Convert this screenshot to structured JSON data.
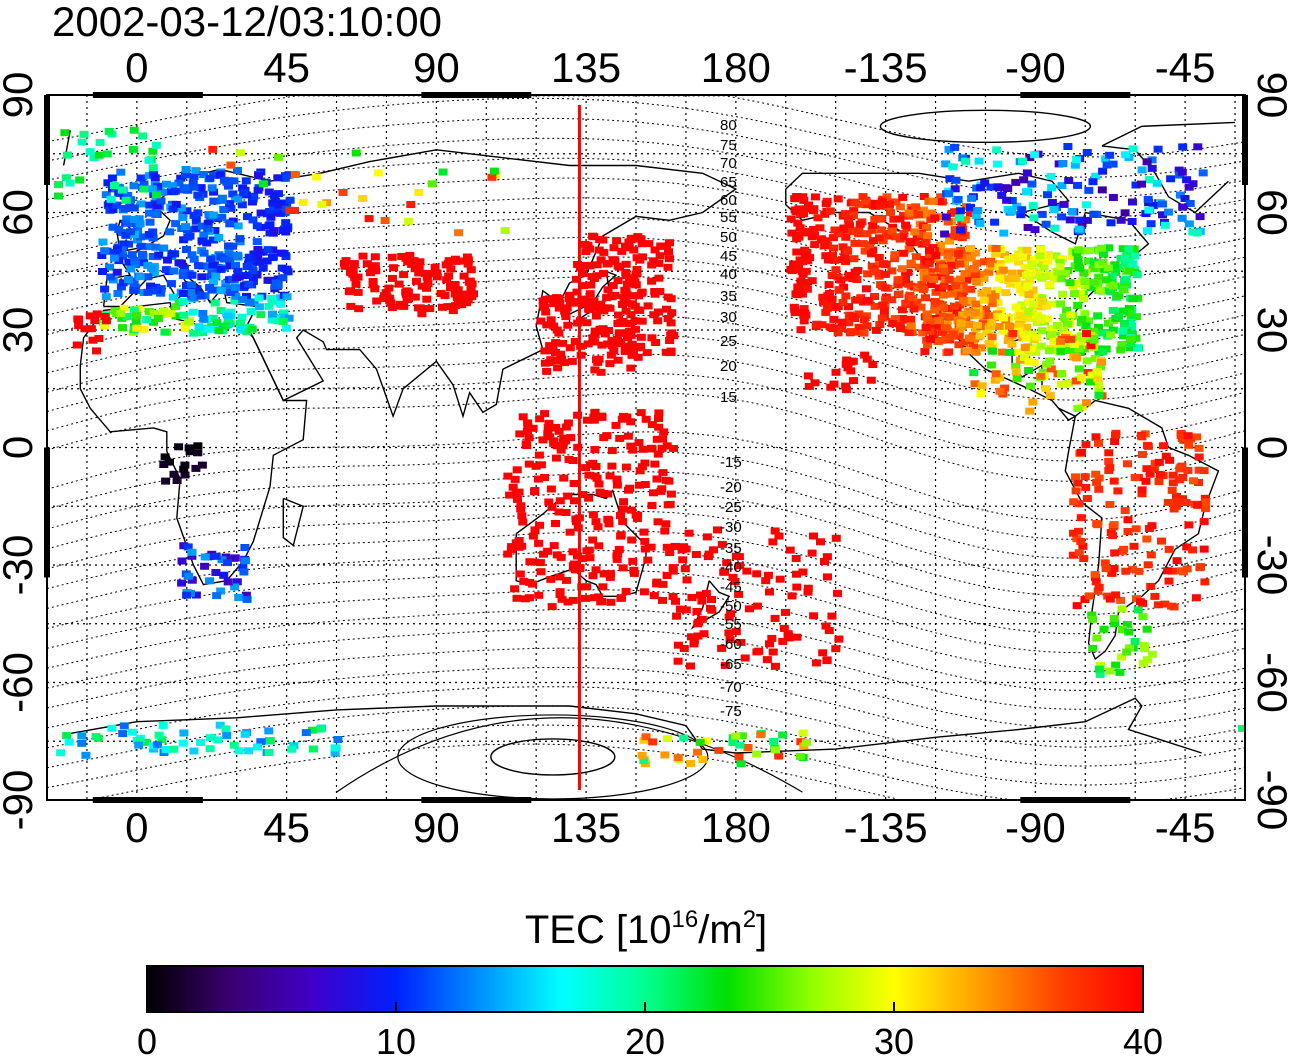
{
  "timestamp": "2002-03-12/03:10:00",
  "map": {
    "projection": "cylindrical",
    "lon_range": [
      -27,
      333
    ],
    "lat_range": [
      -90,
      90
    ],
    "lon_ticks": [
      {
        "lon": 0,
        "label": "0"
      },
      {
        "lon": 45,
        "label": "45"
      },
      {
        "lon": 90,
        "label": "90"
      },
      {
        "lon": 135,
        "label": "135"
      },
      {
        "lon": 180,
        "label": "180"
      },
      {
        "lon": 225,
        "label": "-135"
      },
      {
        "lon": 270,
        "label": "-90"
      },
      {
        "lon": 315,
        "label": "-45"
      }
    ],
    "lat_ticks": [
      {
        "lat": 90,
        "label": "90"
      },
      {
        "lat": 60,
        "label": "60"
      },
      {
        "lat": 30,
        "label": "30"
      },
      {
        "lat": 0,
        "label": "0"
      },
      {
        "lat": -30,
        "label": "-30"
      },
      {
        "lat": -60,
        "label": "-60"
      },
      {
        "lat": -90,
        "label": "-90"
      }
    ],
    "gridlines": true,
    "marker_lon": 133,
    "marker_color": "#ff0000",
    "contour_labels": [
      "80",
      "75",
      "70",
      "65",
      "60",
      "55",
      "50",
      "45",
      "40",
      "35",
      "30",
      "25",
      "20",
      "15",
      "-15",
      "-20",
      "-25",
      "-30",
      "-35",
      "-40",
      "-45",
      "-50",
      "-55",
      "-60",
      "-65",
      "-70",
      "-75"
    ]
  },
  "colorbar": {
    "title": "TEC  [10",
    "title_sup1": "16",
    "title_mid": "/m",
    "title_sup2": "2",
    "title_end": "]",
    "min": 0,
    "max": 40,
    "ticks": [
      "0",
      "10",
      "20",
      "30",
      "40"
    ],
    "colors": [
      "#000000",
      "#3a0070",
      "#4000c8",
      "#0020ff",
      "#0090ff",
      "#00ffff",
      "#00ff90",
      "#00e000",
      "#90ff00",
      "#ffff00",
      "#ffa000",
      "#ff4000",
      "#ff0000"
    ]
  }
}
